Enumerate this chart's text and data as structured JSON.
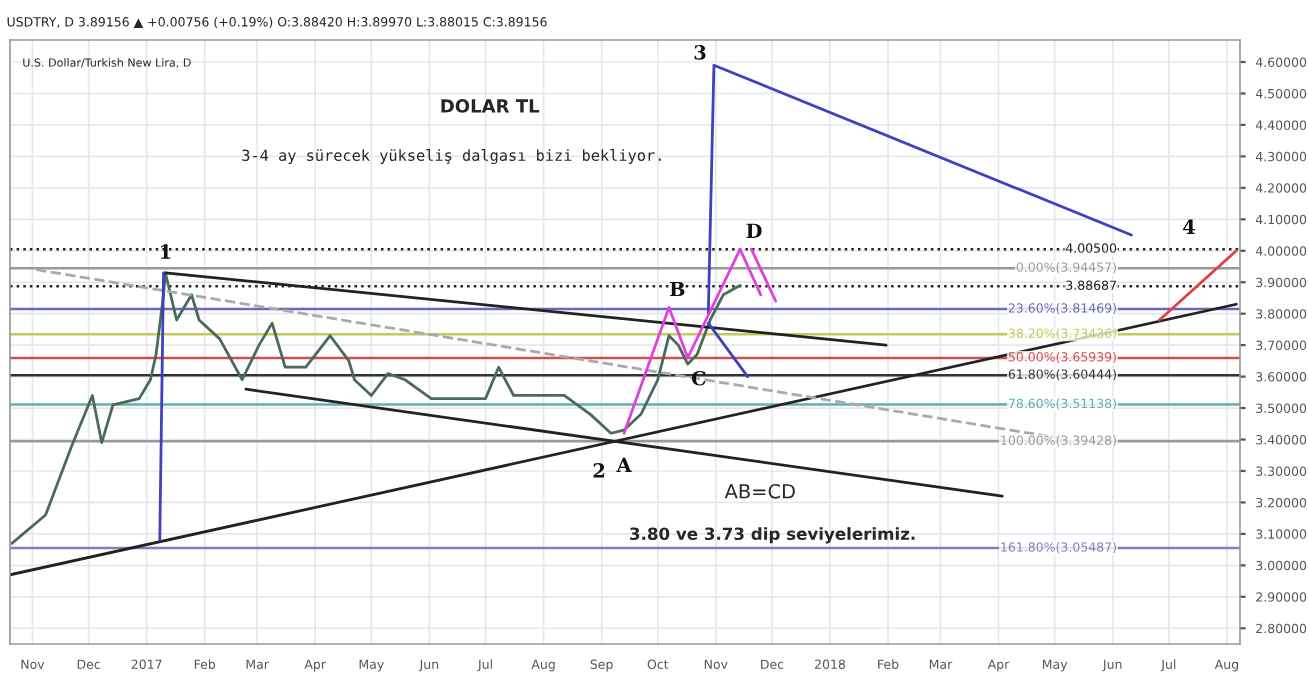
{
  "chart_data": {
    "type": "line",
    "title": "DOLAR TL",
    "subtitle": "3-4 ay sürecek yükseliş dalgası bizi bekliyor.",
    "annotations": [
      "USDTRY, D 3.89156 ▲ +0.00756 (+0.19%) O:3.88420 H:3.89970 L:3.88015 C:3.89156",
      "U.S. Dollar/Turkish New Lira, D",
      "AB=CD",
      "3.80 ve 3.73 dip seviyelerimiz.",
      {
        "text": "1",
        "x": "2017-01-11",
        "y": 3.93
      },
      {
        "text": "2",
        "x": "2017-09-13",
        "y": 3.42
      },
      {
        "text": "3",
        "x": "2017-10-31",
        "y": 4.59
      },
      {
        "text": "4",
        "x": "2018-08-06",
        "y": 4.0
      },
      {
        "text": "A",
        "x": "2017-09-13",
        "y": 3.42
      },
      {
        "text": "B",
        "x": "2017-10-07",
        "y": 3.82
      },
      {
        "text": "C",
        "x": "2017-10-17",
        "y": 3.66
      },
      {
        "text": "D",
        "x": "2017-11-14",
        "y": 4.005
      }
    ],
    "series": [
      {
        "color": "#4a6a5a",
        "x": [
          "2016-10-21",
          "2016-11-08",
          "2016-11-22",
          "2016-12-03",
          "2016-12-08",
          "2016-12-14",
          "2016-12-28",
          "2017-01-03",
          "2017-01-06",
          "2017-01-10",
          "2017-01-11",
          "2017-01-17",
          "2017-01-25",
          "2017-01-29",
          "2017-02-09",
          "2017-02-21",
          "2017-03-02",
          "2017-03-09",
          "2017-03-16",
          "2017-03-27",
          "2017-04-09",
          "2017-04-19",
          "2017-04-22",
          "2017-05-01",
          "2017-05-10",
          "2017-05-19",
          "2017-06-02",
          "2017-06-17",
          "2017-07-01",
          "2017-07-08",
          "2017-07-16",
          "2017-07-29",
          "2017-08-12",
          "2017-08-26",
          "2017-09-06",
          "2017-09-13",
          "2017-09-22",
          "2017-10-01",
          "2017-10-07",
          "2017-10-12",
          "2017-10-17",
          "2017-10-22",
          "2017-10-29",
          "2017-11-05",
          "2017-11-11",
          "2017-11-14"
        ],
        "values": [
          3.07,
          3.16,
          3.38,
          3.54,
          3.39,
          3.51,
          3.53,
          3.59,
          3.67,
          3.86,
          3.93,
          3.78,
          3.86,
          3.78,
          3.72,
          3.59,
          3.7,
          3.77,
          3.63,
          3.63,
          3.73,
          3.65,
          3.59,
          3.54,
          3.61,
          3.59,
          3.53,
          3.53,
          3.53,
          3.63,
          3.54,
          3.54,
          3.54,
          3.48,
          3.42,
          3.43,
          3.48,
          3.59,
          3.73,
          3.7,
          3.64,
          3.67,
          3.78,
          3.86,
          3.88,
          3.89
        ]
      },
      {
        "color": "#222222",
        "x": [
          "2017-01-11",
          "2018-01-31"
        ],
        "values": [
          3.93,
          3.7
        ]
      },
      {
        "color": "#222222",
        "x": [
          "2017-02-23",
          "2018-04-03"
        ],
        "values": [
          3.56,
          3.22
        ]
      },
      {
        "color": "#222222",
        "x": [
          "2016-10-20",
          "2018-08-06"
        ],
        "values": [
          2.97,
          3.83
        ]
      },
      {
        "color": "#aaaaaa",
        "line_style": "dashed",
        "x": [
          "2016-11-03",
          "2018-05-08"
        ],
        "values": [
          3.94,
          3.4
        ]
      },
      {
        "color": "#4040c0",
        "x": [
          "2017-01-08",
          "2017-01-10"
        ],
        "values": [
          3.08,
          3.93
        ]
      },
      {
        "color": "#4040c0",
        "x": [
          "2017-10-28",
          "2017-10-31",
          "2018-06-11"
        ],
        "values": [
          3.8,
          4.59,
          4.05
        ]
      },
      {
        "color": "#4040c0",
        "x": [
          "2017-10-28",
          "2017-11-18"
        ],
        "values": [
          3.77,
          3.6
        ]
      },
      {
        "color": "#e040e0",
        "x": [
          "2017-09-13",
          "2017-10-07",
          "2017-10-17",
          "2017-11-14",
          "2017-11-25"
        ],
        "values": [
          3.42,
          3.82,
          3.66,
          4.005,
          3.86
        ]
      },
      {
        "color": "#e040e0",
        "x": [
          "2017-11-20",
          "2017-12-03"
        ],
        "values": [
          4.005,
          3.84
        ]
      },
      {
        "color": "#e04040",
        "x": [
          "2018-06-26",
          "2018-08-06"
        ],
        "values": [
          3.78,
          4.0
        ]
      }
    ],
    "ref_lines": [
      {
        "axis": "y",
        "value": 3.94457,
        "label": "0.00%(3.94457)",
        "color": "#999999"
      },
      {
        "axis": "y",
        "value": 3.81469,
        "label": "23.60%(3.81469)",
        "color": "#6a6ab8"
      },
      {
        "axis": "y",
        "value": 3.73436,
        "label": "38.20%(3.73436)",
        "color": "#c8c860"
      },
      {
        "axis": "y",
        "value": 3.65939,
        "label": "50.00%(3.65939)",
        "color": "#d05050"
      },
      {
        "axis": "y",
        "value": 3.60444,
        "label": "61.80%(3.60444)",
        "color": "#333333"
      },
      {
        "axis": "y",
        "value": 3.51138,
        "label": "78.60%(3.51138)",
        "color": "#60b0b0"
      },
      {
        "axis": "y",
        "value": 3.39428,
        "label": "100.00%(3.39428)",
        "color": "#999999"
      },
      {
        "axis": "y",
        "value": 3.05487,
        "label": "161.80%(3.05487)",
        "color": "#8080c0"
      },
      {
        "axis": "y",
        "value": 4.005,
        "label": "4.00500",
        "color": "#222222",
        "line_style": "dotted"
      },
      {
        "axis": "y",
        "value": 3.88687,
        "label": "3.88687",
        "color": "#222222",
        "line_style": "dotted"
      }
    ],
    "xlim": [
      "2016-10-20",
      "2018-08-08"
    ],
    "xticks": [
      {
        "value": "2016-11-01",
        "label": "Nov"
      },
      {
        "value": "2016-12-01",
        "label": "Dec"
      },
      {
        "value": "2017-01-01",
        "label": "2017"
      },
      {
        "value": "2017-02-01",
        "label": "Feb"
      },
      {
        "value": "2017-03-01",
        "label": "Mar"
      },
      {
        "value": "2017-04-01",
        "label": "Apr"
      },
      {
        "value": "2017-05-01",
        "label": "May"
      },
      {
        "value": "2017-06-01",
        "label": "Jun"
      },
      {
        "value": "2017-07-01",
        "label": "Jul"
      },
      {
        "value": "2017-08-01",
        "label": "Aug"
      },
      {
        "value": "2017-09-01",
        "label": "Sep"
      },
      {
        "value": "2017-10-01",
        "label": "Oct"
      },
      {
        "value": "2017-11-01",
        "label": "Nov"
      },
      {
        "value": "2017-12-01",
        "label": "Dec"
      },
      {
        "value": "2018-01-01",
        "label": "2018"
      },
      {
        "value": "2018-02-01",
        "label": "Feb"
      },
      {
        "value": "2018-03-01",
        "label": "Mar"
      },
      {
        "value": "2018-04-01",
        "label": "Apr"
      },
      {
        "value": "2018-05-01",
        "label": "May"
      },
      {
        "value": "2018-06-01",
        "label": "Jun"
      },
      {
        "value": "2018-07-01",
        "label": "Jul"
      },
      {
        "value": "2018-08-01",
        "label": "Aug"
      }
    ],
    "ylim": [
      2.75,
      4.67
    ],
    "yticks": [
      {
        "value": 2.8,
        "label": "2.80000"
      },
      {
        "value": 2.9,
        "label": "2.90000"
      },
      {
        "value": 3.0,
        "label": "3.00000"
      },
      {
        "value": 3.1,
        "label": "3.10000"
      },
      {
        "value": 3.2,
        "label": "3.20000"
      },
      {
        "value": 3.3,
        "label": "3.30000"
      },
      {
        "value": 3.4,
        "label": "3.40000"
      },
      {
        "value": 3.5,
        "label": "3.50000"
      },
      {
        "value": 3.6,
        "label": "3.60000"
      },
      {
        "value": 3.7,
        "label": "3.70000"
      },
      {
        "value": 3.8,
        "label": "3.80000"
      },
      {
        "value": 3.9,
        "label": "3.90000"
      },
      {
        "value": 4.0,
        "label": "4.00000"
      },
      {
        "value": 4.1,
        "label": "4.10000"
      },
      {
        "value": 4.2,
        "label": "4.20000"
      },
      {
        "value": 4.3,
        "label": "4.30000"
      },
      {
        "value": 4.4,
        "label": "4.40000"
      },
      {
        "value": 4.5,
        "label": "4.50000"
      },
      {
        "value": 4.6,
        "label": "4.60000"
      }
    ],
    "grid": true,
    "line_style": "solid"
  }
}
